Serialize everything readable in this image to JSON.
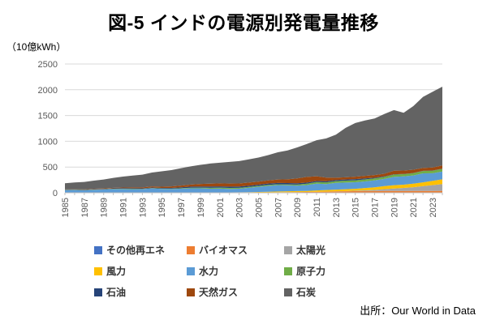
{
  "title": "図-5 インドの電源別発電量推移",
  "unit_label": "（10億kWh）",
  "source": "出所：Our World in Data",
  "axis_colors": {
    "gridline": "#D9D9D9",
    "axis_line": "#BFBFBF",
    "tick_label": "#595959"
  },
  "chart_data": {
    "type": "area",
    "stacked": true,
    "title": "図-5 インドの電源別発電量推移",
    "ylabel": "（10億kWh）",
    "ylim": [
      0,
      2500
    ],
    "y_ticks": [
      0,
      500,
      1000,
      1500,
      2000,
      2500
    ],
    "grid": true,
    "legend_position": "bottom",
    "x": [
      1985,
      1986,
      1987,
      1988,
      1989,
      1990,
      1991,
      1992,
      1993,
      1994,
      1995,
      1996,
      1997,
      1998,
      1999,
      2000,
      2001,
      2002,
      2003,
      2004,
      2005,
      2006,
      2007,
      2008,
      2009,
      2010,
      2011,
      2012,
      2013,
      2014,
      2015,
      2016,
      2017,
      2018,
      2019,
      2020,
      2021,
      2022,
      2023,
      2024
    ],
    "x_tick_labels": [
      "1985",
      "1987",
      "1989",
      "1991",
      "1993",
      "1995",
      "1997",
      "1999",
      "2001",
      "2003",
      "2005",
      "2007",
      "2009",
      "2011",
      "2013",
      "2015",
      "2017",
      "2019",
      "2021",
      "2023"
    ],
    "series": [
      {
        "key": "other-renewables",
        "name": "その他再エネ",
        "color": "#4472C4",
        "values": [
          0,
          0,
          0,
          0,
          0,
          0,
          0,
          0,
          0,
          0,
          0,
          0,
          0,
          0,
          0,
          0.5,
          0.5,
          0.5,
          0.5,
          0.5,
          1,
          1,
          1,
          1,
          1,
          1,
          1.5,
          1.5,
          2,
          2,
          2,
          2.5,
          2.5,
          3,
          3,
          3,
          3.5,
          3.5,
          4,
          4
        ]
      },
      {
        "key": "biomass",
        "name": "バイオマス",
        "color": "#ED7D31",
        "values": [
          0,
          0,
          0,
          0,
          0,
          0,
          0.5,
          1,
          1,
          1,
          1,
          1,
          1.2,
          1.5,
          1.8,
          2,
          2.5,
          3,
          3.5,
          4,
          5,
          7,
          9,
          11,
          13,
          15,
          18,
          21,
          24,
          27,
          30,
          30,
          31,
          32,
          33,
          31,
          32,
          32,
          32,
          33
        ]
      },
      {
        "key": "solar",
        "name": "太陽光",
        "color": "#A5A5A5",
        "values": [
          0,
          0,
          0,
          0,
          0,
          0,
          0,
          0,
          0,
          0,
          0,
          0,
          0,
          0,
          0,
          0,
          0,
          0,
          0,
          0,
          0,
          0,
          0,
          0,
          0,
          0.1,
          0.5,
          2,
          3,
          5,
          9,
          14,
          22,
          35,
          46,
          60,
          73,
          95,
          113,
          133
        ]
      },
      {
        "key": "wind",
        "name": "風力",
        "color": "#FFC000",
        "values": [
          0,
          0,
          0,
          0,
          0,
          0,
          0,
          0.1,
          0.3,
          1,
          1.5,
          2,
          2.5,
          2.5,
          2.7,
          3,
          3.5,
          4,
          5,
          7,
          9,
          12,
          15,
          17,
          19,
          20,
          25,
          28,
          32,
          34,
          35,
          45,
          51,
          60,
          65,
          64,
          68,
          72,
          82,
          92
        ]
      },
      {
        "key": "hydro",
        "name": "水力",
        "color": "#5B9BD5",
        "values": [
          51,
          54,
          47,
          58,
          62,
          72,
          73,
          70,
          70,
          83,
          72,
          69,
          75,
          83,
          82,
          74,
          74,
          68,
          69,
          85,
          101,
          114,
          124,
          117,
          107,
          114,
          131,
          116,
          132,
          131,
          129,
          129,
          135,
          140,
          162,
          161,
          160,
          174,
          149,
          150
        ]
      },
      {
        "key": "nuclear",
        "name": "原子力",
        "color": "#70AD47",
        "values": [
          5,
          5,
          5,
          6,
          5,
          6,
          6,
          7,
          5,
          6,
          8,
          9,
          10,
          12,
          13,
          17,
          19,
          19,
          18,
          17,
          17,
          19,
          17,
          15,
          19,
          26,
          32,
          33,
          33,
          36,
          37,
          38,
          37,
          39,
          45,
          43,
          44,
          46,
          48,
          52
        ]
      },
      {
        "key": "oil",
        "name": "石油",
        "color": "#264478",
        "values": [
          5,
          5,
          6,
          7,
          8,
          9,
          10,
          11,
          11,
          12,
          12,
          14,
          17,
          20,
          23,
          25,
          25,
          25,
          25,
          25,
          25,
          25,
          25,
          28,
          25,
          23,
          20,
          23,
          22,
          23,
          23,
          20,
          15,
          10,
          5,
          4,
          4,
          4,
          4,
          4
        ]
      },
      {
        "key": "natural-gas",
        "name": "天然ガス",
        "color": "#9E480E",
        "values": [
          4,
          5,
          6,
          7,
          9,
          10,
          13,
          15,
          17,
          20,
          23,
          28,
          34,
          40,
          48,
          56,
          58,
          60,
          60,
          60,
          59,
          62,
          67,
          72,
          95,
          109,
          93,
          71,
          45,
          42,
          47,
          49,
          50,
          50,
          70,
          67,
          63,
          55,
          59,
          62
        ]
      },
      {
        "key": "coal",
        "name": "石炭",
        "color": "#636363",
        "values": [
          119,
          131,
          146,
          157,
          174,
          192,
          212,
          230,
          248,
          270,
          299,
          317,
          337,
          353,
          371,
          390,
          402,
          419,
          434,
          450,
          466,
          492,
          528,
          560,
          601,
          640,
          700,
          760,
          835,
          960,
          1042,
          1075,
          1100,
          1160,
          1177,
          1119,
          1235,
          1380,
          1470,
          1530
        ]
      }
    ]
  }
}
